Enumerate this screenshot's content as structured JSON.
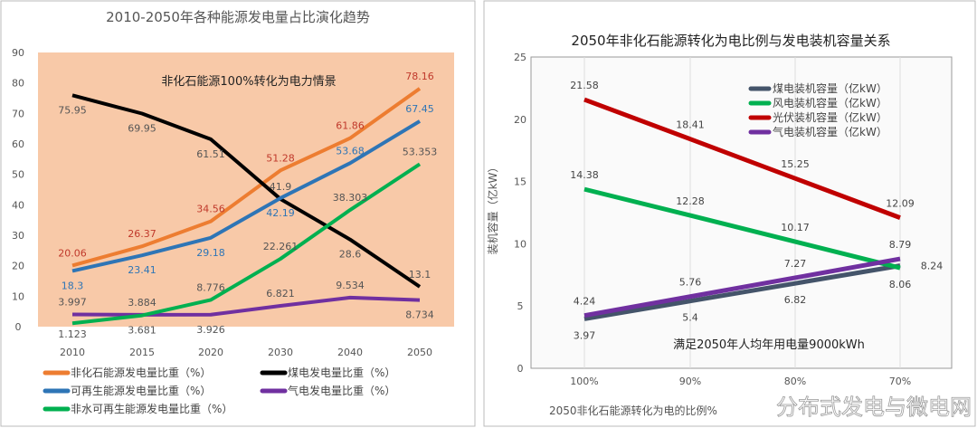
{
  "chart_data": [
    {
      "type": "line",
      "title": "2010-2050年各种能源发电量占比演化趋势",
      "annotation": "非化石能源100%转化为电力情景",
      "categories": [
        "2010",
        "2015",
        "2020",
        "2030",
        "2040",
        "2050"
      ],
      "ylim": [
        0,
        90
      ],
      "yticks": [
        0,
        10,
        20,
        30,
        40,
        50,
        60,
        70,
        80,
        90
      ],
      "legend": "bottom",
      "plot_background": "#f8c9a8",
      "series": [
        {
          "name": "非化石能源发电量比重（%）",
          "color": "#ed7d31",
          "label_color": "#c0392b",
          "values": [
            20.06,
            26.37,
            34.56,
            51.28,
            61.86,
            78.16
          ]
        },
        {
          "name": "煤电发电量比重（%）",
          "color": "#000000",
          "label_color": "#555555",
          "values": [
            75.95,
            69.95,
            61.51,
            41.9,
            28.6,
            13.1
          ]
        },
        {
          "name": "可再生能源发电量比重（%）",
          "color": "#2e75b6",
          "label_color": "#2e75b6",
          "values": [
            18.3,
            23.41,
            29.18,
            42.19,
            53.68,
            67.45
          ]
        },
        {
          "name": "气电发电量比重（%）",
          "color": "#7030a0",
          "label_color": "#555555",
          "values": [
            3.997,
            3.884,
            3.926,
            6.821,
            9.534,
            8.734
          ]
        },
        {
          "name": "非水可再生能源发电量比重（%）",
          "color": "#00b050",
          "label_color": "#555555",
          "values": [
            1.123,
            3.681,
            8.776,
            22.261,
            38.303,
            53.353
          ]
        }
      ]
    },
    {
      "type": "line",
      "title": "2050年非化石能源转化为电比例与发电装机容量关系",
      "ylabel": "装机容量（亿kW）",
      "xlabel": "2050非化石能源转化为电的比例%",
      "annotation": "满足2050年人均年用电量9000kWh",
      "categories": [
        "100%",
        "90%",
        "80%",
        "70%"
      ],
      "ylim": [
        0,
        25
      ],
      "yticks": [
        0,
        5,
        10,
        15,
        20,
        25
      ],
      "legend": "top-right",
      "grid": true,
      "series": [
        {
          "name": "煤电装机容量（亿kW）",
          "color": "#44546a",
          "values": [
            3.97,
            5.4,
            6.82,
            8.24
          ]
        },
        {
          "name": "风电装机容量（亿kW）",
          "color": "#00b050",
          "values": [
            14.38,
            12.28,
            10.17,
            8.06
          ]
        },
        {
          "name": "光伏装机容量（亿kW）",
          "color": "#c00000",
          "values": [
            21.58,
            18.41,
            15.25,
            12.09
          ]
        },
        {
          "name": "气电装机容量（亿kW）",
          "color": "#7030a0",
          "values": [
            4.24,
            5.76,
            7.27,
            8.79
          ]
        }
      ]
    }
  ],
  "watermark": "分布式发电与微电网"
}
